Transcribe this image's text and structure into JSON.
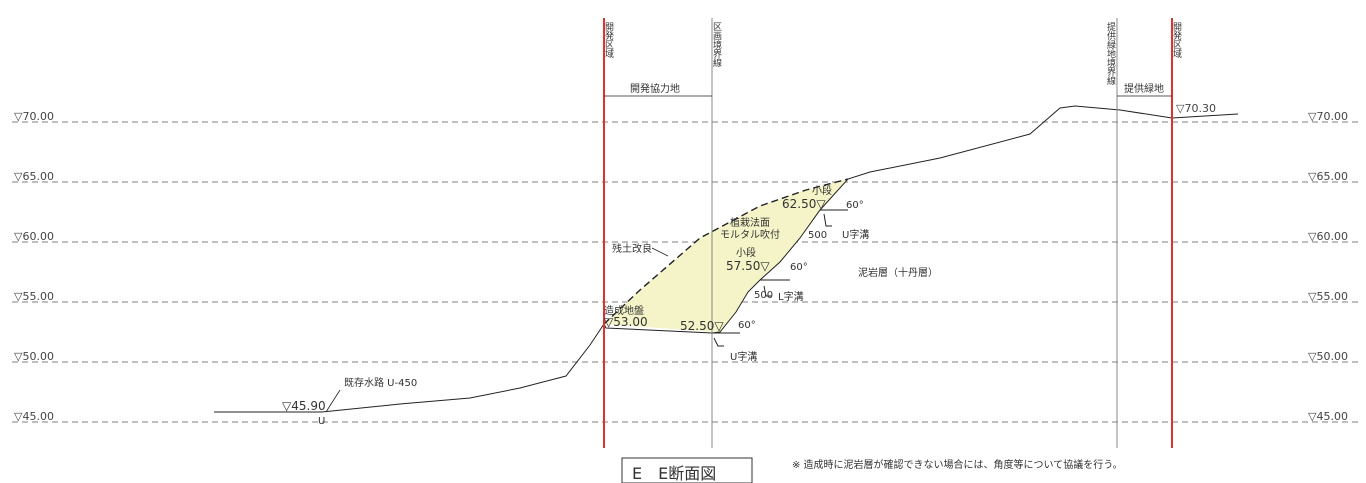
{
  "levels": [
    "▽70.00",
    "▽65.00",
    "▽60.00",
    "▽55.00",
    "▽50.00",
    "▽45.00"
  ],
  "vertical_labels": {
    "left_boundary": "開発区域",
    "plan_boundary": "区画境界線",
    "right_plan_boundary": "提供緑地境界線",
    "right_boundary": "開発区域"
  },
  "zone_labels": {
    "left_zone": "開発協力地",
    "right_zone": "提供緑地"
  },
  "annotations": {
    "top_elevation": "▽70.30",
    "bottom_elevation": "▽45.90",
    "existing_channel": "既存水路 U-450",
    "u_marker": "U",
    "soil_improvement": "残土改良",
    "slope_start": "造成地盤",
    "slope_start_elev": "▽53.00",
    "elev_5250_a": "52.50▽",
    "small_step": "小段",
    "elev_5750": "57.50▽",
    "top_step": "小段",
    "elev_6250": "62.50▽",
    "slope_protection_1": "植栽法面",
    "slope_protection_2": "モルタル吹付",
    "mudstone": "泥岩層（十丹層）",
    "u_ditch_1": "U字溝",
    "u_ditch_2": "L字溝",
    "u_ditch_3": "U字溝",
    "w500_a": "500",
    "w500_b": "500",
    "angle_60_a": "60°",
    "angle_60_b": "60°",
    "angle_60_c": "60°"
  },
  "title": "E　E断面図",
  "note": "※ 造成時に泥岩層が確認できない場合には、角度等について協議を行う。",
  "colors": {
    "boundary_red": "#e03030",
    "fill_yellow": "#f4f4c8",
    "line": "#222222",
    "gray": "#888888"
  }
}
